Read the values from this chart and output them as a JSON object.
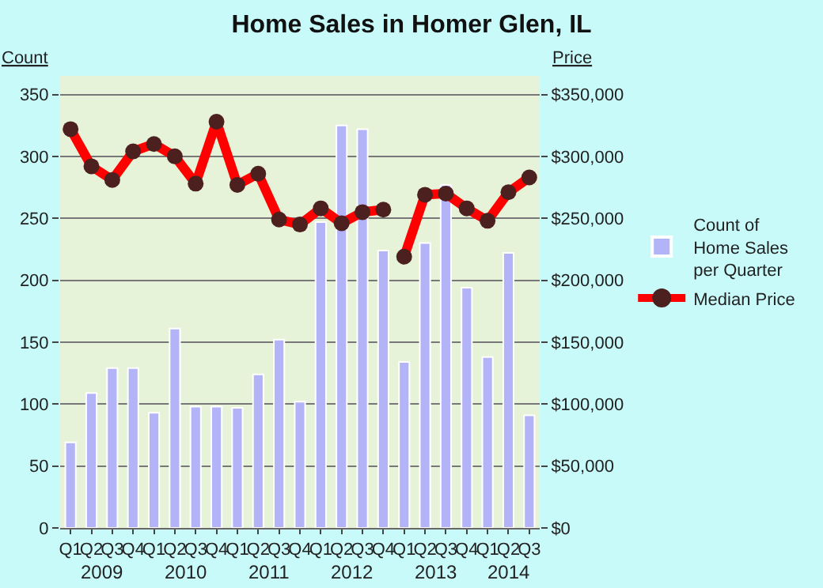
{
  "chart_data": {
    "type": "bar",
    "title": "Home Sales in Homer Glen, IL",
    "ylabel": "Count",
    "y2label": "Price",
    "categories": [
      "Q1",
      "Q2",
      "Q3",
      "Q4",
      "Q1",
      "Q2",
      "Q3",
      "Q4",
      "Q1",
      "Q2",
      "Q3",
      "Q4",
      "Q1",
      "Q2",
      "Q3",
      "Q4",
      "Q1",
      "Q2",
      "Q3",
      "Q4",
      "Q1",
      "Q2",
      "Q3"
    ],
    "series": [
      {
        "name": "Count of Home Sales per Quarter",
        "color": "#b3b3f8",
        "values": [
          69,
          109,
          129,
          129,
          93,
          161,
          98,
          98,
          97,
          124,
          152,
          102,
          247,
          325,
          322,
          224,
          134,
          230,
          277,
          194,
          138,
          222,
          91
        ]
      },
      {
        "name": "Median Price",
        "type": "line",
        "axis": "y2",
        "color": "#ff0000",
        "marker": "circle",
        "values": [
          322000,
          292000,
          281000,
          304000,
          310000,
          300000,
          278000,
          328000,
          277000,
          286000,
          249000,
          245000,
          258000,
          246000,
          255000,
          257000,
          null,
          null,
          null,
          null,
          null,
          null,
          null
        ]
      },
      {
        "type": "line",
        "axis": "y2",
        "color": "#ff0000",
        "marker": "circle",
        "values": [
          null,
          null,
          null,
          null,
          null,
          null,
          null,
          null,
          null,
          null,
          null,
          null,
          null,
          null,
          null,
          null,
          219000,
          269000,
          270000,
          258000,
          248000,
          271000,
          283000
        ]
      }
    ],
    "ylim": [
      0,
      365
    ],
    "yticks": [
      0,
      50,
      100,
      150,
      200,
      250,
      300,
      350
    ],
    "y2lim": [
      0,
      365000
    ],
    "y2ticks": [
      {
        "value": 0,
        "label": "$0"
      },
      {
        "value": 50000,
        "label": "$50,000"
      },
      {
        "value": 100000,
        "label": "$100,000"
      },
      {
        "value": 150000,
        "label": "$150,000"
      },
      {
        "value": 200000,
        "label": "$200,000"
      },
      {
        "value": 250000,
        "label": "$250,000"
      },
      {
        "value": 300000,
        "label": "$300,000"
      },
      {
        "value": 350000,
        "label": "$350,000"
      }
    ],
    "annotations": [
      "2009",
      "2010",
      "2011",
      "2012",
      "2013",
      "2014"
    ],
    "grid": "y",
    "legend": "right"
  }
}
